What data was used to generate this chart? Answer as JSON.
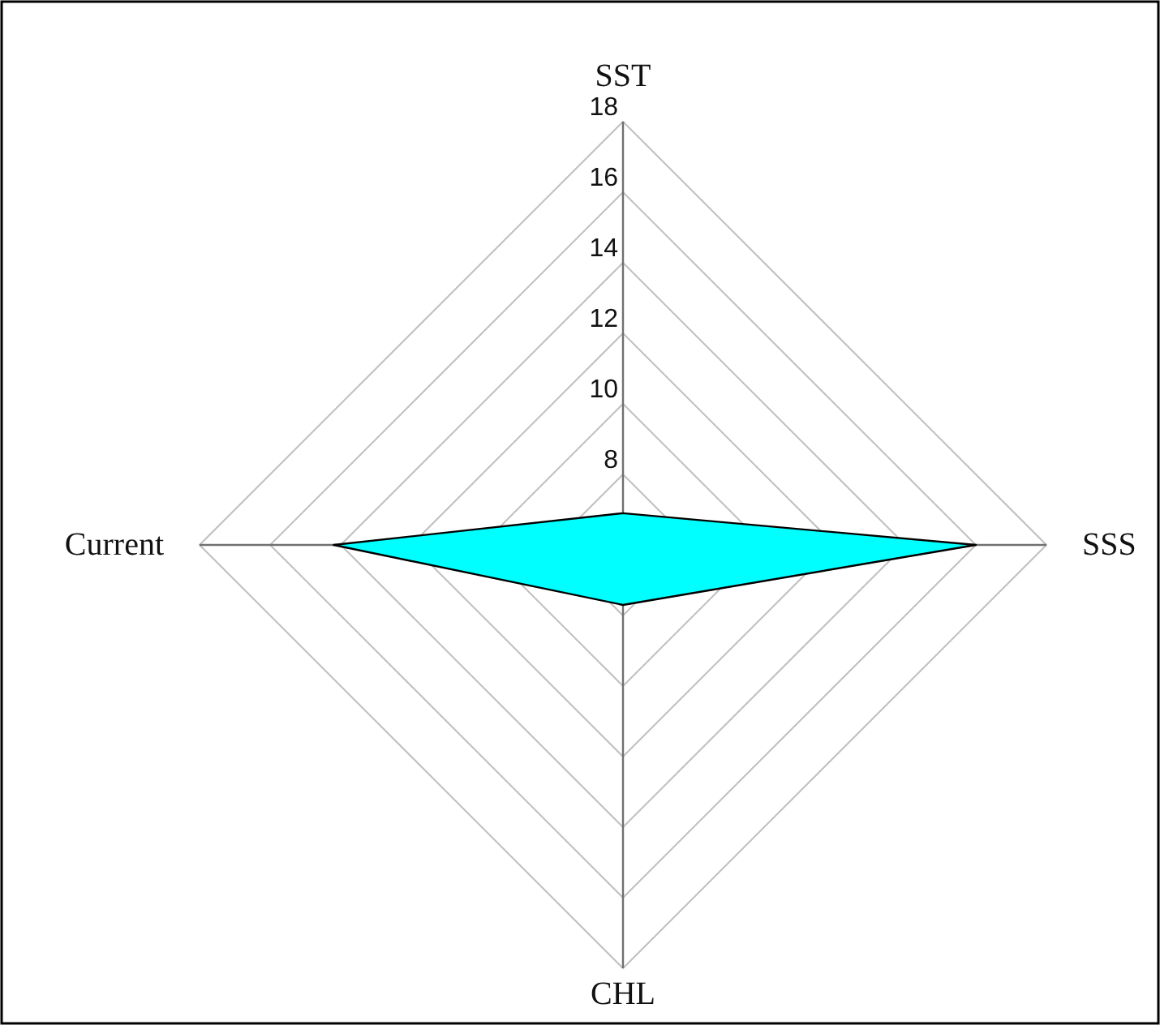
{
  "chart_data": {
    "type": "radar",
    "categories": [
      "SST",
      "SSS",
      "CHL",
      "Current"
    ],
    "series": [
      {
        "color": "#00ffff",
        "values": [
          6.9,
          16,
          7.7,
          14.2
        ]
      }
    ],
    "ylim": [
      6,
      18
    ],
    "yticks": [
      8,
      10,
      12,
      14,
      16,
      18
    ],
    "grid": true
  }
}
